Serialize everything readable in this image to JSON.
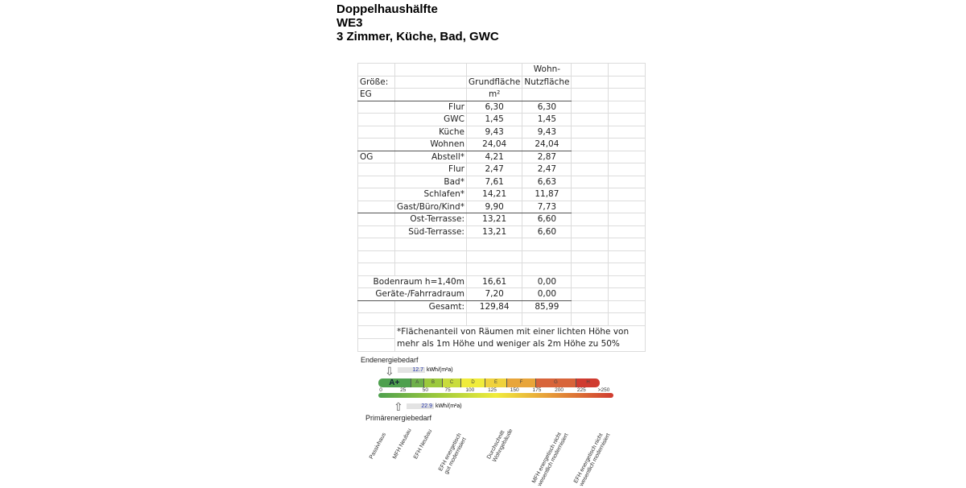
{
  "header": {
    "line1": "Doppelhaushälfte",
    "line2": "WE3",
    "line3": "3 Zimmer, Küche, Bad, GWC"
  },
  "table": {
    "h_groesse": "Größe:",
    "h_eg": "EG",
    "h_grund": "Grundfläche",
    "h_wohn1": "Wohn-",
    "h_wohn2": "Nutzfläche",
    "h_unit": "m²",
    "h_og": "OG",
    "rows": [
      {
        "room": "Flur",
        "grund": "6,30",
        "wohn": "6,30"
      },
      {
        "room": "GWC",
        "grund": "1,45",
        "wohn": "1,45"
      },
      {
        "room": "Küche",
        "grund": "9,43",
        "wohn": "9,43"
      },
      {
        "room": "Wohnen",
        "grund": "24,04",
        "wohn": "24,04"
      },
      {
        "room": "Abstell*",
        "grund": "4,21",
        "wohn": "2,87"
      },
      {
        "room": "Flur",
        "grund": "2,47",
        "wohn": "2,47"
      },
      {
        "room": "Bad*",
        "grund": "7,61",
        "wohn": "6,63"
      },
      {
        "room": "Schlafen*",
        "grund": "14,21",
        "wohn": "11,87"
      },
      {
        "room": "Gast/Büro/Kind*",
        "grund": "9,90",
        "wohn": "7,73"
      },
      {
        "room": "Ost-Terrasse:",
        "grund": "13,21",
        "wohn": "6,60"
      },
      {
        "room": "Süd-Terrasse:",
        "grund": "13,21",
        "wohn": "6,60"
      },
      {
        "room": "Bodenraum h=1,40m",
        "grund": "16,61",
        "wohn": "0,00"
      },
      {
        "room": "Geräte-/Fahrradraum",
        "grund": "7,20",
        "wohn": "0,00"
      },
      {
        "room": "Gesamt:",
        "grund": "129,84",
        "wohn": "85,99"
      }
    ],
    "footnote": "*Flächenanteil von Räumen mit einer lichten Höhe von mehr als 1m Höhe und weniger als 2m Höhe zu 50%"
  },
  "energy": {
    "end_label": "Endenergiebedarf",
    "end_value": "12.7",
    "unit": "kWh/(m²a)",
    "primary_label": "Primärenergiebedarf",
    "primary_value": "22.9",
    "classes": [
      "A+",
      "A",
      "B",
      "C",
      "D",
      "E",
      "F",
      "G",
      "H"
    ],
    "ticks": [
      "0",
      "25",
      "50",
      "75",
      "100",
      "125",
      "150",
      "175",
      "200",
      "225",
      ">250"
    ],
    "categories": [
      "Passivhaus",
      "MFH Neubau",
      "EFH Neubau",
      "EFH energetisch\ngut modernisiert",
      "Durchschnitt\nWohngebäude",
      "MFH energetisch nicht\nwesentlich modernisiert",
      "EFH energetisch nicht\nwesentlich modernisiert"
    ],
    "colors": [
      "#4ea04e",
      "#f0ec3c",
      "#d03b30"
    ]
  }
}
